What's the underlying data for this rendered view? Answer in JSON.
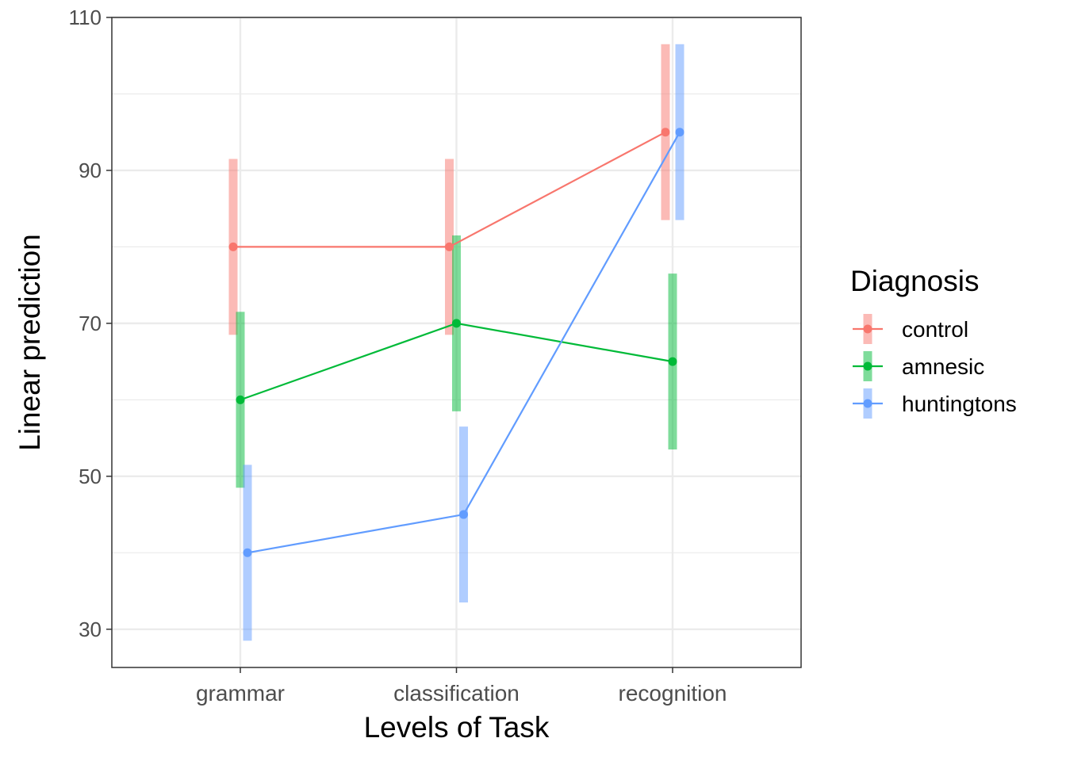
{
  "chart_data": {
    "type": "line",
    "title": "",
    "xlabel": "Levels of Task",
    "ylabel": "Linear prediction",
    "categories": [
      "grammar",
      "classification",
      "recognition"
    ],
    "ylim": [
      25,
      110
    ],
    "yticks": [
      30,
      50,
      70,
      90,
      110
    ],
    "yticks_labels": [
      "30",
      "50",
      "70",
      "90",
      "110"
    ],
    "legend": {
      "title": "Diagnosis",
      "position": "right"
    },
    "series": [
      {
        "name": "control",
        "color": "#F8766D",
        "values": [
          80,
          80,
          95
        ],
        "ci_low": [
          68.5,
          68.5,
          83.5
        ],
        "ci_high": [
          91.5,
          91.5,
          106.5
        ]
      },
      {
        "name": "amnesic",
        "color": "#00BA38",
        "values": [
          60,
          70,
          65
        ],
        "ci_low": [
          48.5,
          58.5,
          53.5
        ],
        "ci_high": [
          71.5,
          81.5,
          76.5
        ]
      },
      {
        "name": "huntingtons",
        "color": "#619CFF",
        "values": [
          40,
          45,
          95
        ],
        "ci_low": [
          28.5,
          33.5,
          83.5
        ],
        "ci_high": [
          51.5,
          56.5,
          106.5
        ]
      }
    ]
  }
}
